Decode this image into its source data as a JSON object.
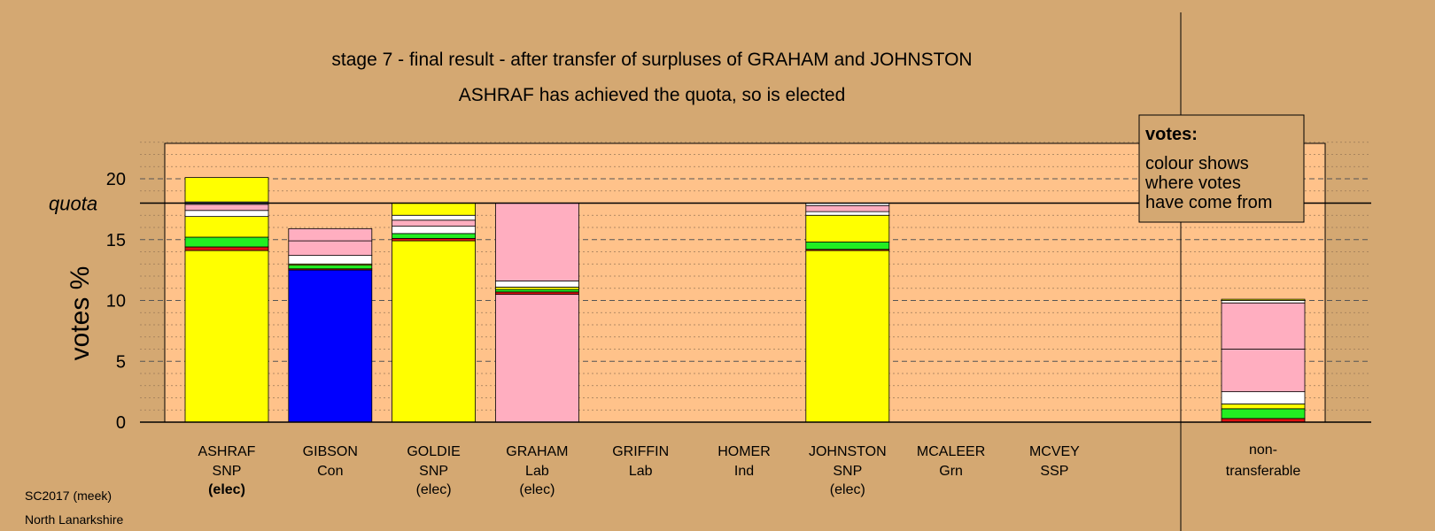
{
  "title": "stage 7 - final result - after transfer of surpluses of GRAHAM and JOHNSTON",
  "subtitle": "ASHRAF has achieved the quota, so is elected",
  "quota_label": "quota",
  "legend": {
    "title": "votes:",
    "lines": [
      "colour shows",
      "where votes",
      "have come from"
    ]
  },
  "footer": {
    "source": "SC2017 (meek)",
    "area": "North Lanarkshire"
  },
  "colors": {
    "background": "#d4a872",
    "plot_area": "#ffc28a",
    "snp": "#ffff00",
    "con": "#0000ff",
    "lab": "#ffaec0",
    "grn": "#22ee22",
    "ind": "#ffffff",
    "ssp": "#dd1111"
  },
  "chart_data": {
    "type": "bar",
    "stacked": true,
    "ylabel": "votes %",
    "ylim": [
      0,
      23
    ],
    "yticks": [
      0,
      5,
      10,
      15,
      20
    ],
    "quota": 18,
    "grid": true,
    "legend_position": "top-right",
    "candidates": [
      {
        "name": "ASHRAF",
        "party": "SNP",
        "status": "(elec)",
        "status_bold": true,
        "segments": [
          {
            "value": 14.1,
            "color": "#ffff00"
          },
          {
            "value": 0.3,
            "color": "#dd1111"
          },
          {
            "value": 0.8,
            "color": "#22ee22"
          },
          {
            "value": 1.7,
            "color": "#ffff00"
          },
          {
            "value": 0.5,
            "color": "#ffffff"
          },
          {
            "value": 0.5,
            "color": "#ffaec0"
          },
          {
            "value": 0.2,
            "color": "#ffffff"
          },
          {
            "value": 2.0,
            "color": "#ffff00"
          }
        ]
      },
      {
        "name": "GIBSON",
        "party": "Con",
        "status": "",
        "status_bold": false,
        "segments": [
          {
            "value": 12.5,
            "color": "#0000ff"
          },
          {
            "value": 0.1,
            "color": "#dd1111"
          },
          {
            "value": 0.3,
            "color": "#22ee22"
          },
          {
            "value": 0.1,
            "color": "#ffff00"
          },
          {
            "value": 0.7,
            "color": "#ffffff"
          },
          {
            "value": 1.2,
            "color": "#ffaec0"
          },
          {
            "value": 1.0,
            "color": "#ffaec0"
          }
        ]
      },
      {
        "name": "GOLDIE",
        "party": "SNP",
        "status": "(elec)",
        "status_bold": false,
        "segments": [
          {
            "value": 14.9,
            "color": "#ffff00"
          },
          {
            "value": 0.2,
            "color": "#dd1111"
          },
          {
            "value": 0.4,
            "color": "#22ee22"
          },
          {
            "value": 0.6,
            "color": "#ffffff"
          },
          {
            "value": 0.5,
            "color": "#ffaec0"
          },
          {
            "value": 0.4,
            "color": "#ffffff"
          },
          {
            "value": 1.0,
            "color": "#ffff00"
          }
        ]
      },
      {
        "name": "GRAHAM",
        "party": "Lab",
        "status": "(elec)",
        "status_bold": false,
        "segments": [
          {
            "value": 10.5,
            "color": "#ffaec0"
          },
          {
            "value": 0.2,
            "color": "#dd1111"
          },
          {
            "value": 0.2,
            "color": "#22ee22"
          },
          {
            "value": 0.2,
            "color": "#ffff00"
          },
          {
            "value": 0.5,
            "color": "#ffffff"
          },
          {
            "value": 6.4,
            "color": "#ffaec0"
          }
        ]
      },
      {
        "name": "GRIFFIN",
        "party": "Lab",
        "status": "",
        "status_bold": false,
        "segments": []
      },
      {
        "name": "HOMER",
        "party": "Ind",
        "status": "",
        "status_bold": false,
        "segments": []
      },
      {
        "name": "JOHNSTON",
        "party": "SNP",
        "status": "(elec)",
        "status_bold": false,
        "segments": [
          {
            "value": 14.1,
            "color": "#ffff00"
          },
          {
            "value": 0.1,
            "color": "#dd1111"
          },
          {
            "value": 0.6,
            "color": "#22ee22"
          },
          {
            "value": 2.2,
            "color": "#ffff00"
          },
          {
            "value": 0.3,
            "color": "#ffffff"
          },
          {
            "value": 0.5,
            "color": "#ffaec0"
          },
          {
            "value": 0.2,
            "color": "#ffffff"
          }
        ]
      },
      {
        "name": "MCALEER",
        "party": "Grn",
        "status": "",
        "status_bold": false,
        "segments": []
      },
      {
        "name": "MCVEY",
        "party": "SSP",
        "status": "",
        "status_bold": false,
        "segments": []
      }
    ],
    "nontransferable": {
      "label_line1": "non-",
      "label_line2": "transferable",
      "segments": [
        {
          "value": 0.3,
          "color": "#dd1111"
        },
        {
          "value": 0.8,
          "color": "#22ee22"
        },
        {
          "value": 0.4,
          "color": "#ffff00"
        },
        {
          "value": 1.0,
          "color": "#ffffff"
        },
        {
          "value": 3.5,
          "color": "#ffaec0"
        },
        {
          "value": 3.8,
          "color": "#ffaec0"
        },
        {
          "value": 0.2,
          "color": "#ffffff"
        },
        {
          "value": 0.1,
          "color": "#ffff00"
        }
      ]
    }
  }
}
